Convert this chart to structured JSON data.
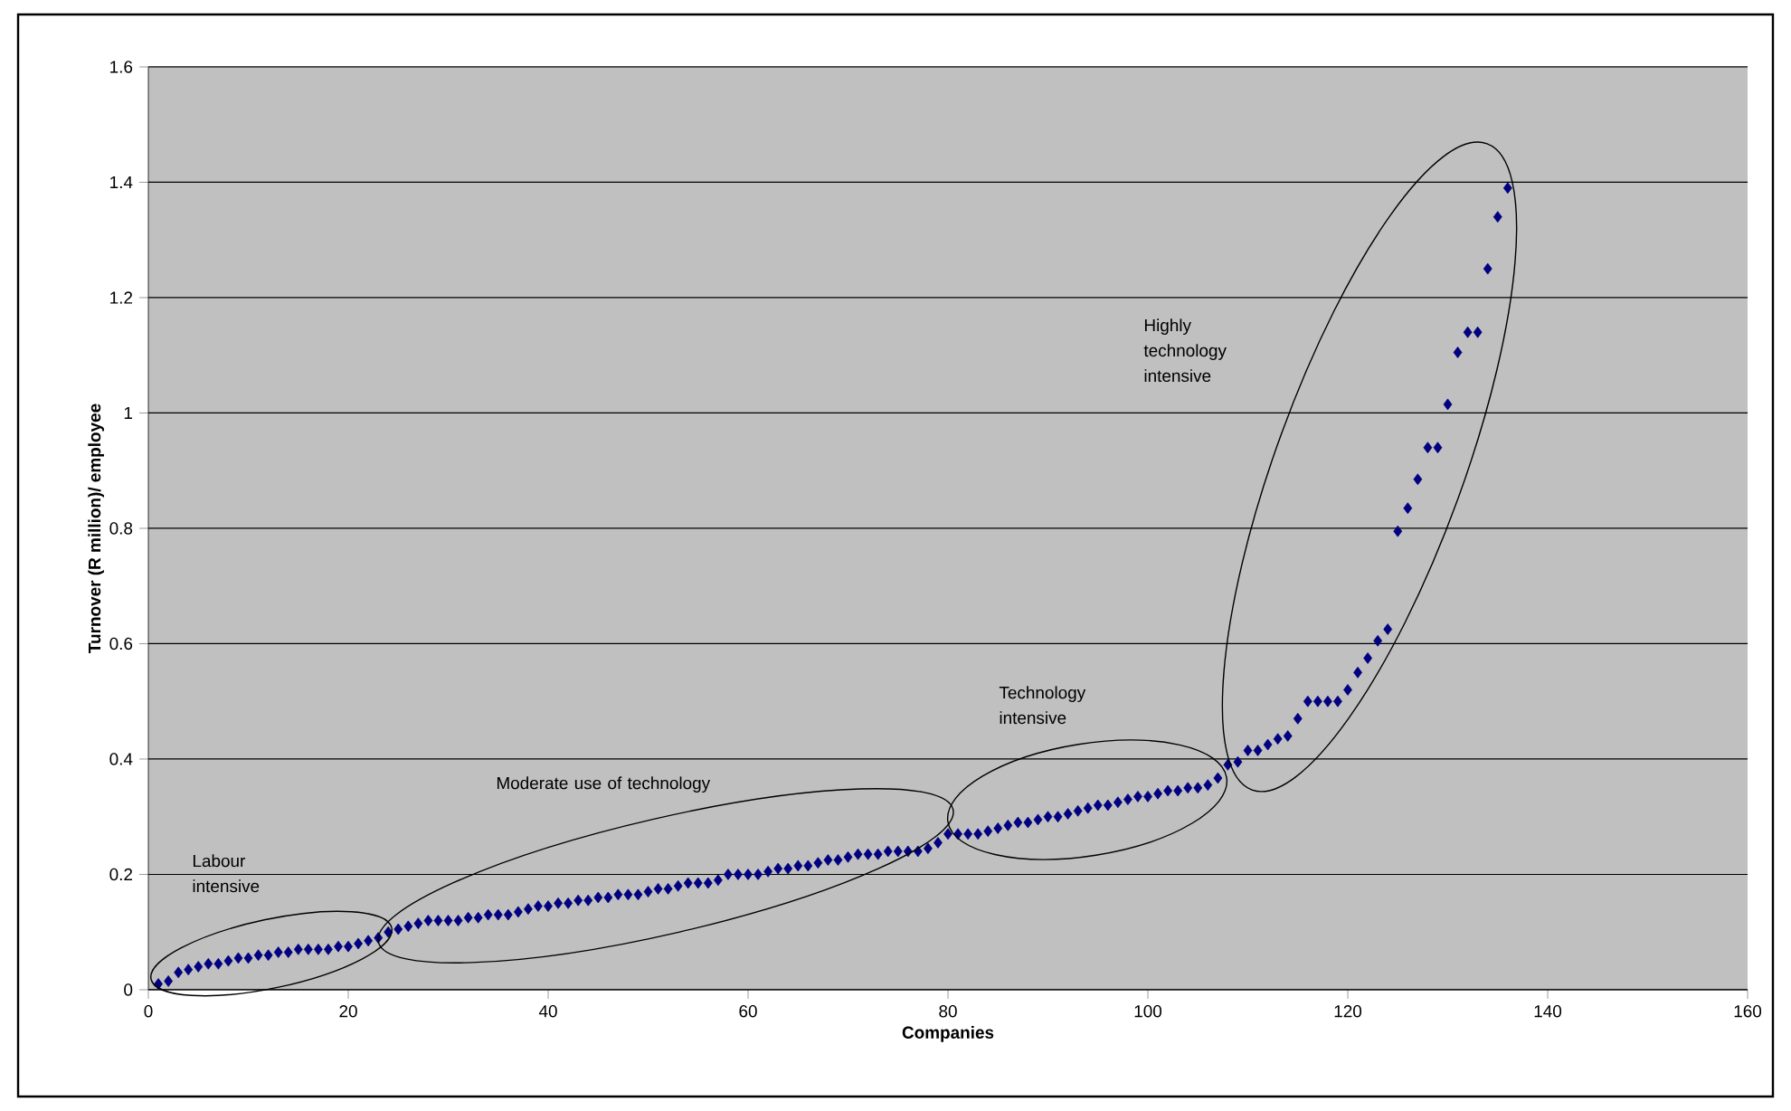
{
  "chart_data": {
    "type": "scatter",
    "xlabel": "Companies",
    "ylabel": "Turnover (R million)/ employee",
    "x": [
      1,
      2,
      3,
      4,
      5,
      6,
      7,
      8,
      9,
      10,
      11,
      12,
      13,
      14,
      15,
      16,
      17,
      18,
      19,
      20,
      21,
      22,
      23,
      24,
      25,
      26,
      27,
      28,
      29,
      30,
      31,
      32,
      33,
      34,
      35,
      36,
      37,
      38,
      39,
      40,
      41,
      42,
      43,
      44,
      45,
      46,
      47,
      48,
      49,
      50,
      51,
      52,
      53,
      54,
      55,
      56,
      57,
      58,
      59,
      60,
      61,
      62,
      63,
      64,
      65,
      66,
      67,
      68,
      69,
      70,
      71,
      72,
      73,
      74,
      75,
      76,
      77,
      78,
      79,
      80,
      81,
      82,
      83,
      84,
      85,
      86,
      87,
      88,
      89,
      90,
      91,
      92,
      93,
      94,
      95,
      96,
      97,
      98,
      99,
      100,
      101,
      102,
      103,
      104,
      105,
      106,
      107,
      108,
      109,
      110,
      111,
      112,
      113,
      114,
      115,
      116,
      117,
      118,
      119,
      120,
      121,
      122,
      123,
      124,
      125,
      126,
      127,
      128,
      129,
      130,
      131,
      132,
      133,
      134,
      135,
      136
    ],
    "values": [
      0.01,
      0.015,
      0.03,
      0.035,
      0.04,
      0.045,
      0.045,
      0.05,
      0.055,
      0.055,
      0.06,
      0.06,
      0.065,
      0.065,
      0.07,
      0.07,
      0.07,
      0.07,
      0.075,
      0.075,
      0.08,
      0.085,
      0.09,
      0.1,
      0.105,
      0.11,
      0.115,
      0.12,
      0.12,
      0.12,
      0.12,
      0.125,
      0.125,
      0.13,
      0.13,
      0.13,
      0.135,
      0.14,
      0.145,
      0.145,
      0.15,
      0.15,
      0.155,
      0.155,
      0.16,
      0.16,
      0.165,
      0.165,
      0.165,
      0.17,
      0.175,
      0.175,
      0.18,
      0.185,
      0.185,
      0.185,
      0.19,
      0.2,
      0.2,
      0.2,
      0.2,
      0.205,
      0.21,
      0.21,
      0.215,
      0.215,
      0.22,
      0.225,
      0.225,
      0.23,
      0.235,
      0.235,
      0.235,
      0.24,
      0.24,
      0.24,
      0.24,
      0.245,
      0.255,
      0.27,
      0.27,
      0.27,
      0.27,
      0.275,
      0.28,
      0.285,
      0.29,
      0.29,
      0.295,
      0.3,
      0.3,
      0.305,
      0.31,
      0.315,
      0.32,
      0.32,
      0.325,
      0.33,
      0.335,
      0.335,
      0.34,
      0.345,
      0.345,
      0.35,
      0.35,
      0.355,
      0.367,
      0.39,
      0.395,
      0.415,
      0.415,
      0.425,
      0.435,
      0.44,
      0.47,
      0.5,
      0.5,
      0.5,
      0.5,
      0.52,
      0.55,
      0.575,
      0.605,
      0.625,
      0.795,
      0.835,
      0.885,
      0.94,
      0.94,
      1.015,
      1.105,
      1.14,
      1.14,
      1.25,
      1.34,
      1.39
    ],
    "color": "#000080",
    "marker": "diamond",
    "xlim": [
      0,
      160
    ],
    "xticks": [
      0,
      20,
      40,
      60,
      80,
      100,
      120,
      140,
      160
    ],
    "ylim": [
      0,
      1.6
    ],
    "yticks": [
      0,
      0.2,
      0.4,
      0.6,
      0.8,
      1,
      1.2,
      1.4,
      1.6
    ],
    "grid": "y",
    "annotations": [
      "Labour intensive",
      "Moderate use of technology",
      "Technology intensive",
      "Highly technology intensive"
    ]
  }
}
